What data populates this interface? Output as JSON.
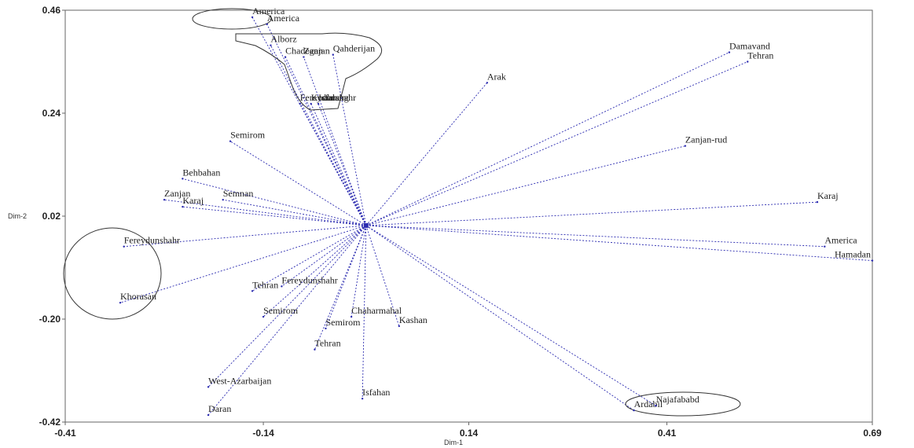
{
  "chart_data": {
    "type": "scatter",
    "title": "",
    "xlabel": "Dim-1",
    "ylabel": "Dim-2",
    "xlim": [
      -0.41,
      0.69
    ],
    "ylim": [
      -0.42,
      0.46
    ],
    "xticks": [
      "-0.41",
      "-0.14",
      "0.14",
      "0.41",
      "0.69"
    ],
    "yticks": [
      "0.46",
      "0.24",
      "0.02",
      "-0.20",
      "-0.42"
    ],
    "xtick_values": [
      -0.41,
      -0.14,
      0.14,
      0.41,
      0.69
    ],
    "ytick_values": [
      0.46,
      0.24,
      0.02,
      -0.2,
      -0.42
    ],
    "grid": false,
    "origin": [
      0.0,
      0.0
    ],
    "rays_from_origin": true,
    "line_color": "#2b2bb0",
    "ellipse_color": "#333333",
    "points": [
      {
        "label": "America",
        "x": -0.155,
        "y": 0.445
      },
      {
        "label": "America",
        "x": -0.135,
        "y": 0.43
      },
      {
        "label": "Alborz",
        "x": -0.13,
        "y": 0.385
      },
      {
        "label": "Chadegan",
        "x": -0.11,
        "y": 0.36
      },
      {
        "label": "Zanjan",
        "x": -0.085,
        "y": 0.36
      },
      {
        "label": "Qahderijan",
        "x": -0.045,
        "y": 0.365
      },
      {
        "label": "Fereydunshahr",
        "x": -0.09,
        "y": 0.26
      },
      {
        "label": "Koohrang",
        "x": -0.075,
        "y": 0.26
      },
      {
        "label": "Isfahan",
        "x": -0.065,
        "y": 0.26
      },
      {
        "label": "Arak",
        "x": 0.165,
        "y": 0.305
      },
      {
        "label": "Damavand",
        "x": 0.495,
        "y": 0.37
      },
      {
        "label": "Tehran",
        "x": 0.52,
        "y": 0.35
      },
      {
        "label": "Zanjan-rud",
        "x": 0.435,
        "y": 0.17
      },
      {
        "label": "Karaj",
        "x": 0.615,
        "y": 0.05
      },
      {
        "label": "America",
        "x": 0.625,
        "y": -0.045
      },
      {
        "label": "Hamadan",
        "x": 0.69,
        "y": -0.075
      },
      {
        "label": "Semirom",
        "x": -0.185,
        "y": 0.18
      },
      {
        "label": "Behbahan",
        "x": -0.25,
        "y": 0.1
      },
      {
        "label": "Zanjan",
        "x": -0.275,
        "y": 0.055
      },
      {
        "label": "Semnan",
        "x": -0.195,
        "y": 0.055
      },
      {
        "label": "Karaj",
        "x": -0.25,
        "y": 0.04
      },
      {
        "label": "Fereydunshahr",
        "x": -0.33,
        "y": -0.045
      },
      {
        "label": "Khorasan",
        "x": -0.335,
        "y": -0.165
      },
      {
        "label": "Tehran",
        "x": -0.155,
        "y": -0.14
      },
      {
        "label": "Fereydunshahr",
        "x": -0.115,
        "y": -0.13
      },
      {
        "label": "Semirom",
        "x": -0.14,
        "y": -0.195
      },
      {
        "label": "Semirom",
        "x": -0.055,
        "y": -0.22
      },
      {
        "label": "Chaharmahal",
        "x": -0.02,
        "y": -0.195
      },
      {
        "label": "Kashan",
        "x": 0.045,
        "y": -0.215
      },
      {
        "label": "Tehran",
        "x": -0.07,
        "y": -0.265
      },
      {
        "label": "Isfahan",
        "x": -0.005,
        "y": -0.37
      },
      {
        "label": "West-Azarbaijan",
        "x": -0.215,
        "y": -0.345
      },
      {
        "label": "Daran",
        "x": -0.215,
        "y": -0.405
      },
      {
        "label": "Ardabil",
        "x": 0.365,
        "y": -0.395
      },
      {
        "label": "Najafababd",
        "x": 0.395,
        "y": -0.385
      }
    ]
  }
}
